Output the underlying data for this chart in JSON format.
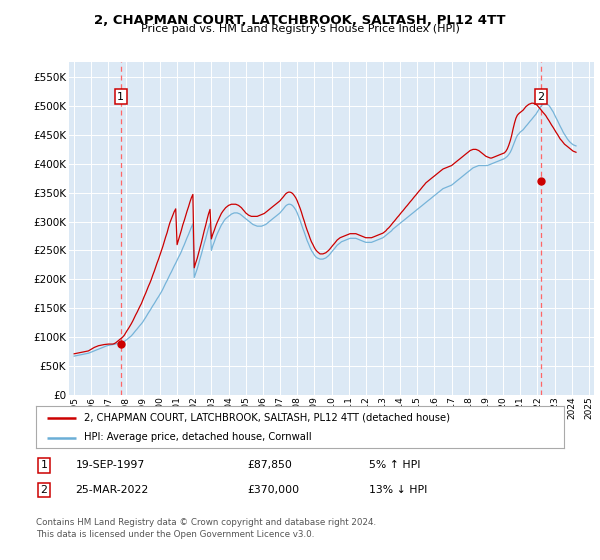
{
  "title": "2, CHAPMAN COURT, LATCHBROOK, SALTASH, PL12 4TT",
  "subtitle": "Price paid vs. HM Land Registry's House Price Index (HPI)",
  "background_color": "#dce9f5",
  "grid_color": "#ffffff",
  "ylim": [
    0,
    577000
  ],
  "yticks": [
    0,
    50000,
    100000,
    150000,
    200000,
    250000,
    300000,
    350000,
    400000,
    450000,
    500000,
    550000
  ],
  "ytick_labels": [
    "£0",
    "£50K",
    "£100K",
    "£150K",
    "£200K",
    "£250K",
    "£300K",
    "£350K",
    "£400K",
    "£450K",
    "£500K",
    "£550K"
  ],
  "sale1_x": 1997.72,
  "sale1_price": 87850,
  "sale2_x": 2022.21,
  "sale2_price": 370000,
  "legend_line1": "2, CHAPMAN COURT, LATCHBROOK, SALTASH, PL12 4TT (detached house)",
  "legend_line2": "HPI: Average price, detached house, Cornwall",
  "note1_label": "1",
  "note1_date": "19-SEP-1997",
  "note1_price": "£87,850",
  "note1_hpi": "5% ↑ HPI",
  "note2_label": "2",
  "note2_date": "25-MAR-2022",
  "note2_price": "£370,000",
  "note2_hpi": "13% ↓ HPI",
  "footer": "Contains HM Land Registry data © Crown copyright and database right 2024.\nThis data is licensed under the Open Government Licence v3.0.",
  "hpi_line_color": "#6baed6",
  "property_line_color": "#cc0000",
  "dot_color": "#cc0000",
  "vline_color": "#ff6666",
  "hpi_data_x": [
    1995.0,
    1995.08,
    1995.17,
    1995.25,
    1995.33,
    1995.42,
    1995.5,
    1995.58,
    1995.67,
    1995.75,
    1995.83,
    1995.92,
    1996.0,
    1996.08,
    1996.17,
    1996.25,
    1996.33,
    1996.42,
    1996.5,
    1996.58,
    1996.67,
    1996.75,
    1996.83,
    1996.92,
    1997.0,
    1997.08,
    1997.17,
    1997.25,
    1997.33,
    1997.42,
    1997.5,
    1997.58,
    1997.67,
    1997.75,
    1997.83,
    1997.92,
    1998.0,
    1998.08,
    1998.17,
    1998.25,
    1998.33,
    1998.42,
    1998.5,
    1998.58,
    1998.67,
    1998.75,
    1998.83,
    1998.92,
    1999.0,
    1999.08,
    1999.17,
    1999.25,
    1999.33,
    1999.42,
    1999.5,
    1999.58,
    1999.67,
    1999.75,
    1999.83,
    1999.92,
    2000.0,
    2000.08,
    2000.17,
    2000.25,
    2000.33,
    2000.42,
    2000.5,
    2000.58,
    2000.67,
    2000.75,
    2000.83,
    2000.92,
    2001.0,
    2001.08,
    2001.17,
    2001.25,
    2001.33,
    2001.42,
    2001.5,
    2001.58,
    2001.67,
    2001.75,
    2001.83,
    2001.92,
    2002.0,
    2002.08,
    2002.17,
    2002.25,
    2002.33,
    2002.42,
    2002.5,
    2002.58,
    2002.67,
    2002.75,
    2002.83,
    2002.92,
    2003.0,
    2003.08,
    2003.17,
    2003.25,
    2003.33,
    2003.42,
    2003.5,
    2003.58,
    2003.67,
    2003.75,
    2003.83,
    2003.92,
    2004.0,
    2004.08,
    2004.17,
    2004.25,
    2004.33,
    2004.42,
    2004.5,
    2004.58,
    2004.67,
    2004.75,
    2004.83,
    2004.92,
    2005.0,
    2005.08,
    2005.17,
    2005.25,
    2005.33,
    2005.42,
    2005.5,
    2005.58,
    2005.67,
    2005.75,
    2005.83,
    2005.92,
    2006.0,
    2006.08,
    2006.17,
    2006.25,
    2006.33,
    2006.42,
    2006.5,
    2006.58,
    2006.67,
    2006.75,
    2006.83,
    2006.92,
    2007.0,
    2007.08,
    2007.17,
    2007.25,
    2007.33,
    2007.42,
    2007.5,
    2007.58,
    2007.67,
    2007.75,
    2007.83,
    2007.92,
    2008.0,
    2008.08,
    2008.17,
    2008.25,
    2008.33,
    2008.42,
    2008.5,
    2008.58,
    2008.67,
    2008.75,
    2008.83,
    2008.92,
    2009.0,
    2009.08,
    2009.17,
    2009.25,
    2009.33,
    2009.42,
    2009.5,
    2009.58,
    2009.67,
    2009.75,
    2009.83,
    2009.92,
    2010.0,
    2010.08,
    2010.17,
    2010.25,
    2010.33,
    2010.42,
    2010.5,
    2010.58,
    2010.67,
    2010.75,
    2010.83,
    2010.92,
    2011.0,
    2011.08,
    2011.17,
    2011.25,
    2011.33,
    2011.42,
    2011.5,
    2011.58,
    2011.67,
    2011.75,
    2011.83,
    2011.92,
    2012.0,
    2012.08,
    2012.17,
    2012.25,
    2012.33,
    2012.42,
    2012.5,
    2012.58,
    2012.67,
    2012.75,
    2012.83,
    2012.92,
    2013.0,
    2013.08,
    2013.17,
    2013.25,
    2013.33,
    2013.42,
    2013.5,
    2013.58,
    2013.67,
    2013.75,
    2013.83,
    2013.92,
    2014.0,
    2014.08,
    2014.17,
    2014.25,
    2014.33,
    2014.42,
    2014.5,
    2014.58,
    2014.67,
    2014.75,
    2014.83,
    2014.92,
    2015.0,
    2015.08,
    2015.17,
    2015.25,
    2015.33,
    2015.42,
    2015.5,
    2015.58,
    2015.67,
    2015.75,
    2015.83,
    2015.92,
    2016.0,
    2016.08,
    2016.17,
    2016.25,
    2016.33,
    2016.42,
    2016.5,
    2016.58,
    2016.67,
    2016.75,
    2016.83,
    2016.92,
    2017.0,
    2017.08,
    2017.17,
    2017.25,
    2017.33,
    2017.42,
    2017.5,
    2017.58,
    2017.67,
    2017.75,
    2017.83,
    2017.92,
    2018.0,
    2018.08,
    2018.17,
    2018.25,
    2018.33,
    2018.42,
    2018.5,
    2018.58,
    2018.67,
    2018.75,
    2018.83,
    2018.92,
    2019.0,
    2019.08,
    2019.17,
    2019.25,
    2019.33,
    2019.42,
    2019.5,
    2019.58,
    2019.67,
    2019.75,
    2019.83,
    2019.92,
    2020.0,
    2020.08,
    2020.17,
    2020.25,
    2020.33,
    2020.42,
    2020.5,
    2020.58,
    2020.67,
    2020.75,
    2020.83,
    2020.92,
    2021.0,
    2021.08,
    2021.17,
    2021.25,
    2021.33,
    2021.42,
    2021.5,
    2021.58,
    2021.67,
    2021.75,
    2021.83,
    2021.92,
    2022.0,
    2022.08,
    2022.17,
    2022.25,
    2022.33,
    2022.42,
    2022.5,
    2022.58,
    2022.67,
    2022.75,
    2022.83,
    2022.92,
    2023.0,
    2023.08,
    2023.17,
    2023.25,
    2023.33,
    2023.42,
    2023.5,
    2023.58,
    2023.67,
    2023.75,
    2023.83,
    2023.92,
    2024.0,
    2024.08,
    2024.17,
    2024.25
  ],
  "hpi_data_y": [
    67000,
    67500,
    68000,
    68500,
    69000,
    69500,
    70000,
    70500,
    71000,
    71500,
    72000,
    73000,
    74000,
    75000,
    76000,
    77000,
    78000,
    79000,
    80000,
    81000,
    82000,
    83000,
    84000,
    85000,
    85500,
    86000,
    86500,
    87000,
    87500,
    88000,
    88500,
    89000,
    89500,
    90000,
    91000,
    92500,
    94000,
    96000,
    98000,
    100000,
    102000,
    105000,
    108000,
    111000,
    114000,
    117000,
    120000,
    123000,
    126000,
    130000,
    134000,
    138000,
    142000,
    146000,
    150000,
    154000,
    158000,
    162000,
    166000,
    170000,
    174000,
    178000,
    183000,
    188000,
    193000,
    198000,
    203000,
    208000,
    213000,
    218000,
    223000,
    228000,
    233000,
    238000,
    243000,
    248000,
    254000,
    260000,
    266000,
    272000,
    278000,
    284000,
    290000,
    296000,
    203000,
    210000,
    218000,
    226000,
    235000,
    244000,
    253000,
    262000,
    271000,
    280000,
    289000,
    297000,
    250000,
    258000,
    265000,
    272000,
    278000,
    284000,
    289000,
    294000,
    298000,
    302000,
    305000,
    307000,
    309000,
    311000,
    313000,
    314000,
    315000,
    315000,
    315000,
    314000,
    313000,
    311000,
    309000,
    307000,
    305000,
    303000,
    301000,
    299000,
    297000,
    295000,
    294000,
    293000,
    292000,
    292000,
    292000,
    292000,
    293000,
    294000,
    295000,
    297000,
    299000,
    301000,
    303000,
    305000,
    307000,
    309000,
    311000,
    313000,
    315000,
    318000,
    321000,
    324000,
    327000,
    329000,
    330000,
    330000,
    329000,
    327000,
    324000,
    320000,
    315000,
    309000,
    302000,
    295000,
    288000,
    281000,
    274000,
    267000,
    261000,
    255000,
    250000,
    246000,
    242000,
    239000,
    237000,
    236000,
    235000,
    235000,
    235000,
    236000,
    237000,
    239000,
    241000,
    244000,
    247000,
    250000,
    253000,
    256000,
    259000,
    261000,
    263000,
    265000,
    266000,
    267000,
    268000,
    269000,
    270000,
    271000,
    271000,
    271000,
    271000,
    271000,
    270000,
    269000,
    268000,
    267000,
    266000,
    265000,
    264000,
    264000,
    264000,
    264000,
    264000,
    265000,
    266000,
    267000,
    268000,
    269000,
    270000,
    271000,
    272000,
    274000,
    276000,
    278000,
    280000,
    282000,
    284000,
    287000,
    289000,
    291000,
    293000,
    295000,
    297000,
    299000,
    301000,
    303000,
    305000,
    307000,
    309000,
    311000,
    313000,
    315000,
    317000,
    319000,
    321000,
    323000,
    325000,
    327000,
    329000,
    331000,
    333000,
    335000,
    337000,
    339000,
    341000,
    343000,
    345000,
    347000,
    349000,
    351000,
    353000,
    355000,
    357000,
    358000,
    359000,
    360000,
    361000,
    362000,
    363000,
    365000,
    367000,
    369000,
    371000,
    373000,
    375000,
    377000,
    379000,
    381000,
    383000,
    385000,
    387000,
    389000,
    391000,
    393000,
    394000,
    395000,
    396000,
    397000,
    397000,
    397000,
    397000,
    397000,
    397000,
    397000,
    398000,
    399000,
    400000,
    401000,
    402000,
    403000,
    404000,
    405000,
    406000,
    407000,
    408000,
    409000,
    411000,
    413000,
    416000,
    420000,
    425000,
    431000,
    438000,
    444000,
    449000,
    452000,
    455000,
    457000,
    459000,
    462000,
    465000,
    468000,
    471000,
    474000,
    477000,
    480000,
    483000,
    486000,
    490000,
    494000,
    498000,
    501000,
    503000,
    504000,
    504000,
    503000,
    501000,
    498000,
    494000,
    490000,
    485000,
    480000,
    475000,
    470000,
    465000,
    460000,
    455000,
    451000,
    447000,
    443000,
    440000,
    437000,
    435000,
    433000,
    432000,
    431000
  ],
  "prop_data_x": [
    1995.0,
    1995.08,
    1995.17,
    1995.25,
    1995.33,
    1995.42,
    1995.5,
    1995.58,
    1995.67,
    1995.75,
    1995.83,
    1995.92,
    1996.0,
    1996.08,
    1996.17,
    1996.25,
    1996.33,
    1996.42,
    1996.5,
    1996.58,
    1996.67,
    1996.75,
    1996.83,
    1996.92,
    1997.0,
    1997.08,
    1997.17,
    1997.25,
    1997.33,
    1997.42,
    1997.5,
    1997.58,
    1997.67,
    1997.75,
    1997.83,
    1997.92,
    1998.0,
    1998.08,
    1998.17,
    1998.25,
    1998.33,
    1998.42,
    1998.5,
    1998.58,
    1998.67,
    1998.75,
    1998.83,
    1998.92,
    1999.0,
    1999.08,
    1999.17,
    1999.25,
    1999.33,
    1999.42,
    1999.5,
    1999.58,
    1999.67,
    1999.75,
    1999.83,
    1999.92,
    2000.0,
    2000.08,
    2000.17,
    2000.25,
    2000.33,
    2000.42,
    2000.5,
    2000.58,
    2000.67,
    2000.75,
    2000.83,
    2000.92,
    2001.0,
    2001.08,
    2001.17,
    2001.25,
    2001.33,
    2001.42,
    2001.5,
    2001.58,
    2001.67,
    2001.75,
    2001.83,
    2001.92,
    2002.0,
    2002.08,
    2002.17,
    2002.25,
    2002.33,
    2002.42,
    2002.5,
    2002.58,
    2002.67,
    2002.75,
    2002.83,
    2002.92,
    2003.0,
    2003.08,
    2003.17,
    2003.25,
    2003.33,
    2003.42,
    2003.5,
    2003.58,
    2003.67,
    2003.75,
    2003.83,
    2003.92,
    2004.0,
    2004.08,
    2004.17,
    2004.25,
    2004.33,
    2004.42,
    2004.5,
    2004.58,
    2004.67,
    2004.75,
    2004.83,
    2004.92,
    2005.0,
    2005.08,
    2005.17,
    2005.25,
    2005.33,
    2005.42,
    2005.5,
    2005.58,
    2005.67,
    2005.75,
    2005.83,
    2005.92,
    2006.0,
    2006.08,
    2006.17,
    2006.25,
    2006.33,
    2006.42,
    2006.5,
    2006.58,
    2006.67,
    2006.75,
    2006.83,
    2006.92,
    2007.0,
    2007.08,
    2007.17,
    2007.25,
    2007.33,
    2007.42,
    2007.5,
    2007.58,
    2007.67,
    2007.75,
    2007.83,
    2007.92,
    2008.0,
    2008.08,
    2008.17,
    2008.25,
    2008.33,
    2008.42,
    2008.5,
    2008.58,
    2008.67,
    2008.75,
    2008.83,
    2008.92,
    2009.0,
    2009.08,
    2009.17,
    2009.25,
    2009.33,
    2009.42,
    2009.5,
    2009.58,
    2009.67,
    2009.75,
    2009.83,
    2009.92,
    2010.0,
    2010.08,
    2010.17,
    2010.25,
    2010.33,
    2010.42,
    2010.5,
    2010.58,
    2010.67,
    2010.75,
    2010.83,
    2010.92,
    2011.0,
    2011.08,
    2011.17,
    2011.25,
    2011.33,
    2011.42,
    2011.5,
    2011.58,
    2011.67,
    2011.75,
    2011.83,
    2011.92,
    2012.0,
    2012.08,
    2012.17,
    2012.25,
    2012.33,
    2012.42,
    2012.5,
    2012.58,
    2012.67,
    2012.75,
    2012.83,
    2012.92,
    2013.0,
    2013.08,
    2013.17,
    2013.25,
    2013.33,
    2013.42,
    2013.5,
    2013.58,
    2013.67,
    2013.75,
    2013.83,
    2013.92,
    2014.0,
    2014.08,
    2014.17,
    2014.25,
    2014.33,
    2014.42,
    2014.5,
    2014.58,
    2014.67,
    2014.75,
    2014.83,
    2014.92,
    2015.0,
    2015.08,
    2015.17,
    2015.25,
    2015.33,
    2015.42,
    2015.5,
    2015.58,
    2015.67,
    2015.75,
    2015.83,
    2015.92,
    2016.0,
    2016.08,
    2016.17,
    2016.25,
    2016.33,
    2016.42,
    2016.5,
    2016.58,
    2016.67,
    2016.75,
    2016.83,
    2016.92,
    2017.0,
    2017.08,
    2017.17,
    2017.25,
    2017.33,
    2017.42,
    2017.5,
    2017.58,
    2017.67,
    2017.75,
    2017.83,
    2017.92,
    2018.0,
    2018.08,
    2018.17,
    2018.25,
    2018.33,
    2018.42,
    2018.5,
    2018.58,
    2018.67,
    2018.75,
    2018.83,
    2018.92,
    2019.0,
    2019.08,
    2019.17,
    2019.25,
    2019.33,
    2019.42,
    2019.5,
    2019.58,
    2019.67,
    2019.75,
    2019.83,
    2019.92,
    2020.0,
    2020.08,
    2020.17,
    2020.25,
    2020.33,
    2020.42,
    2020.5,
    2020.58,
    2020.67,
    2020.75,
    2020.83,
    2020.92,
    2021.0,
    2021.08,
    2021.17,
    2021.25,
    2021.33,
    2021.42,
    2021.5,
    2021.58,
    2021.67,
    2021.75,
    2021.83,
    2021.92,
    2022.0,
    2022.08,
    2022.17,
    2022.25,
    2022.33,
    2022.42,
    2022.5,
    2022.58,
    2022.67,
    2022.75,
    2022.83,
    2022.92,
    2023.0,
    2023.08,
    2023.17,
    2023.25,
    2023.33,
    2023.42,
    2023.5,
    2023.58,
    2023.67,
    2023.75,
    2023.83,
    2023.92,
    2024.0,
    2024.08,
    2024.17,
    2024.25
  ],
  "prop_data_y": [
    71000,
    71500,
    72000,
    72500,
    73000,
    73500,
    74000,
    74500,
    75000,
    75500,
    76000,
    77500,
    79000,
    80500,
    82000,
    83000,
    84000,
    85000,
    85500,
    86000,
    86500,
    87000,
    87300,
    87600,
    87850,
    87850,
    87850,
    87850,
    88500,
    90000,
    92000,
    94000,
    96000,
    98000,
    100000,
    103000,
    107000,
    111000,
    115000,
    119000,
    123000,
    128000,
    133000,
    138000,
    143000,
    148000,
    153000,
    158000,
    164000,
    170000,
    176000,
    182000,
    188000,
    194000,
    200000,
    207000,
    214000,
    221000,
    228000,
    235000,
    242000,
    249000,
    257000,
    265000,
    273000,
    281000,
    290000,
    298000,
    305000,
    311000,
    317000,
    322000,
    260000,
    268000,
    277000,
    285000,
    294000,
    302000,
    310000,
    318000,
    326000,
    334000,
    341000,
    347000,
    220000,
    228000,
    236000,
    245000,
    254000,
    264000,
    274000,
    284000,
    294000,
    304000,
    313000,
    321000,
    270000,
    278000,
    285000,
    292000,
    298000,
    304000,
    309000,
    314000,
    318000,
    321000,
    324000,
    326000,
    328000,
    329000,
    330000,
    330000,
    330000,
    330000,
    329000,
    328000,
    326000,
    324000,
    321000,
    318000,
    315000,
    313000,
    311000,
    310000,
    309000,
    309000,
    309000,
    309000,
    309000,
    310000,
    311000,
    312000,
    313000,
    314000,
    316000,
    318000,
    320000,
    322000,
    324000,
    326000,
    328000,
    330000,
    332000,
    334000,
    336000,
    339000,
    342000,
    345000,
    348000,
    350000,
    351000,
    351000,
    350000,
    348000,
    345000,
    341000,
    336000,
    330000,
    323000,
    316000,
    308000,
    300000,
    292000,
    285000,
    278000,
    271000,
    265000,
    260000,
    255000,
    251000,
    248000,
    246000,
    244000,
    244000,
    244000,
    245000,
    246000,
    248000,
    250000,
    253000,
    256000,
    259000,
    262000,
    265000,
    268000,
    270000,
    272000,
    273000,
    274000,
    275000,
    276000,
    277000,
    278000,
    279000,
    279000,
    279000,
    279000,
    279000,
    278000,
    277000,
    276000,
    275000,
    274000,
    273000,
    272000,
    272000,
    272000,
    272000,
    272000,
    273000,
    274000,
    275000,
    276000,
    277000,
    278000,
    279000,
    280000,
    282000,
    284000,
    287000,
    289000,
    292000,
    295000,
    298000,
    301000,
    304000,
    307000,
    310000,
    313000,
    316000,
    319000,
    322000,
    325000,
    328000,
    331000,
    334000,
    337000,
    340000,
    343000,
    346000,
    349000,
    352000,
    355000,
    358000,
    361000,
    364000,
    367000,
    369000,
    371000,
    373000,
    375000,
    377000,
    379000,
    381000,
    383000,
    385000,
    387000,
    389000,
    391000,
    392000,
    393000,
    394000,
    395000,
    396000,
    397000,
    399000,
    401000,
    403000,
    405000,
    407000,
    409000,
    411000,
    413000,
    415000,
    417000,
    419000,
    421000,
    423000,
    424000,
    425000,
    425000,
    425000,
    424000,
    423000,
    421000,
    419000,
    417000,
    415000,
    413000,
    412000,
    411000,
    410000,
    410000,
    411000,
    412000,
    413000,
    414000,
    415000,
    416000,
    417000,
    418000,
    419000,
    422000,
    426000,
    432000,
    440000,
    449000,
    460000,
    471000,
    479000,
    484000,
    487000,
    489000,
    491000,
    493000,
    496000,
    499000,
    501000,
    503000,
    504000,
    505000,
    505000,
    504000,
    503000,
    501000,
    498000,
    495000,
    492000,
    489000,
    486000,
    483000,
    479000,
    475000,
    471000,
    467000,
    463000,
    459000,
    455000,
    451000,
    447000,
    443000,
    440000,
    437000,
    434000,
    432000,
    430000,
    428000,
    426000,
    424000,
    422000,
    421000,
    420000
  ]
}
